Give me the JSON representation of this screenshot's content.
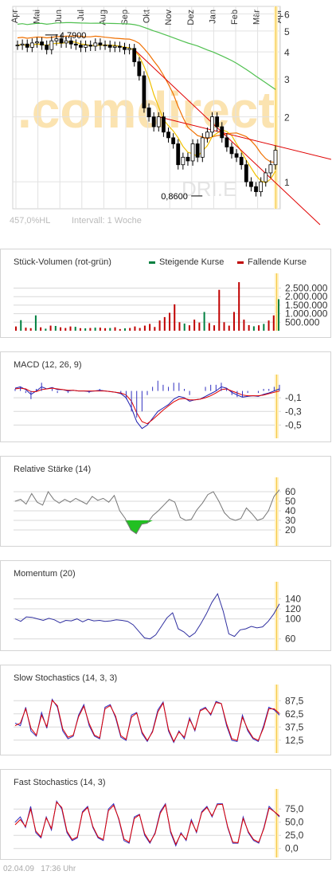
{
  "footer": {
    "date": "02.04.09",
    "time": "17:36 Uhr"
  },
  "main_chart": {
    "watermark": ".comdirect",
    "watermark_code": "DRI.E",
    "perf_label": "457,0%HL",
    "interval_label": "Intervall: 1 Woche",
    "high_label": "4,7900",
    "low_label": "0,8600",
    "colors": {
      "candle": "#000000",
      "ma_short": "#f0c000",
      "ma_mid": "#f07000",
      "ma_long": "#50c050",
      "trend": "#e00000"
    }
  },
  "volume": {
    "title": "Stück-Volumen (rot-grün)",
    "legend_up": "Steigende Kurse",
    "legend_down": "Fallende Kurse",
    "color_up": "#008040",
    "color_down": "#c00000"
  },
  "macd": {
    "title": "MACD (12, 26, 9)"
  },
  "rsi": {
    "title": "Relative Stärke (14)"
  },
  "momentum": {
    "title": "Momentum (20)"
  },
  "slow_stoch": {
    "title": "Slow Stochastics (14, 3, 3)"
  },
  "fast_stoch": {
    "title": "Fast Stochastics (14, 3)"
  },
  "chart_data": [
    {
      "type": "candlestick",
      "x_labels": [
        "Apr",
        "Mai",
        "Jun",
        "Jul",
        "Aug",
        "Sep",
        "Okt",
        "Nov",
        "Dez",
        "Jan",
        "Feb",
        "Mär",
        "Apr"
      ],
      "y_ticks": [
        1,
        2,
        3,
        4,
        5,
        6
      ],
      "y_scale": "log",
      "annotations": [
        {
          "label": "4,7900",
          "value": 4.79
        },
        {
          "label": "0,8600",
          "value": 0.86
        }
      ],
      "close": [
        4.3,
        4.35,
        4.2,
        4.4,
        4.45,
        4.3,
        4.1,
        4.5,
        4.6,
        4.4,
        4.5,
        4.35,
        4.3,
        4.2,
        4.3,
        4.25,
        4.4,
        4.3,
        4.3,
        4.2,
        4.25,
        4.2,
        4.1,
        4.15,
        3.6,
        3.1,
        2.2,
        2.0,
        1.8,
        2.0,
        1.7,
        1.6,
        1.5,
        1.2,
        1.3,
        1.25,
        1.5,
        1.3,
        1.6,
        1.7,
        2.0,
        1.8,
        1.6,
        1.45,
        1.35,
        1.3,
        1.2,
        1.0,
        0.95,
        0.9,
        1.0,
        1.1,
        1.2,
        1.4
      ]
    },
    {
      "type": "bar",
      "title": "Stück-Volumen (rot-grün)",
      "y_ticks": [
        500000,
        1000000,
        1500000,
        2000000,
        2500000
      ],
      "y_tick_labels": [
        "500.000",
        "1.000.000",
        "1.500.000",
        "2.000.000",
        "2.500.000"
      ],
      "values": [
        250000,
        620000,
        180000,
        150000,
        900000,
        200000,
        120000,
        300000,
        280000,
        200000,
        160000,
        250000,
        230000,
        150000,
        140000,
        160000,
        180000,
        180000,
        150000,
        160000,
        200000,
        100000,
        140000,
        160000,
        250000,
        160000,
        300000,
        400000,
        220000,
        600000,
        800000,
        1050000,
        1550000,
        500000,
        420000,
        320000,
        650000,
        480000,
        1100000,
        450000,
        320000,
        2400000,
        500000,
        300000,
        1100000,
        2850000,
        650000,
        330000,
        260000,
        320000,
        400000,
        600000,
        900000,
        1850000
      ],
      "up": [
        false,
        true,
        false,
        false,
        true,
        false,
        true,
        false,
        true,
        false,
        false,
        false,
        true,
        false,
        true,
        false,
        true,
        false,
        false,
        true,
        false,
        false,
        true,
        false,
        false,
        false,
        false,
        false,
        false,
        false,
        false,
        false,
        false,
        false,
        true,
        false,
        false,
        false,
        true,
        false,
        false,
        false,
        false,
        false,
        false,
        false,
        false,
        false,
        true,
        false,
        true,
        false,
        false,
        true
      ]
    },
    {
      "type": "line",
      "title": "MACD (12, 26, 9)",
      "y_ticks": [
        -0.1,
        -0.3,
        -0.5
      ],
      "y_tick_labels": [
        "-0,1",
        "-0,3",
        "-0,5"
      ],
      "series": [
        {
          "values": [
            0.04,
            0.06,
            0.02,
            -0.05,
            0.0,
            0.06,
            0.03,
            0.05,
            0.02,
            0.02,
            0.0,
            0.01,
            0.0,
            0.0,
            -0.01,
            0.0,
            0.01,
            0.0,
            -0.01,
            -0.02,
            -0.04,
            -0.1,
            -0.25,
            -0.45,
            -0.55,
            -0.5,
            -0.4,
            -0.3,
            -0.25,
            -0.2,
            -0.12,
            -0.08,
            -0.1,
            -0.15,
            -0.13,
            -0.12,
            -0.08,
            -0.04,
            0.0,
            0.06,
            0.04,
            -0.02,
            -0.06,
            -0.09,
            -0.08,
            -0.07,
            -0.08,
            -0.05,
            -0.03,
            0.0,
            0.03
          ]
        },
        {
          "values": [
            0.03,
            0.04,
            0.03,
            -0.01,
            -0.01,
            0.02,
            0.03,
            0.04,
            0.03,
            0.02,
            0.01,
            0.01,
            0.0,
            0.0,
            0.0,
            0.0,
            0.0,
            0.0,
            -0.01,
            -0.02,
            -0.03,
            -0.06,
            -0.15,
            -0.32,
            -0.45,
            -0.48,
            -0.42,
            -0.35,
            -0.28,
            -0.22,
            -0.16,
            -0.12,
            -0.11,
            -0.13,
            -0.13,
            -0.12,
            -0.1,
            -0.07,
            -0.03,
            0.02,
            0.03,
            0.0,
            -0.03,
            -0.06,
            -0.07,
            -0.07,
            -0.07,
            -0.06,
            -0.04,
            -0.02,
            0.0
          ]
        }
      ]
    },
    {
      "type": "line",
      "title": "Relative Stärke (14)",
      "y_ticks": [
        20,
        30,
        40,
        50,
        60
      ],
      "values": [
        50,
        52,
        47,
        58,
        49,
        46,
        60,
        52,
        48,
        52,
        49,
        53,
        50,
        47,
        55,
        51,
        53,
        49,
        56,
        40,
        32,
        20,
        16,
        26,
        27,
        35,
        40,
        46,
        52,
        49,
        33,
        30,
        31,
        41,
        48,
        57,
        60,
        50,
        38,
        32,
        30,
        32,
        43,
        37,
        30,
        32,
        40,
        55,
        62
      ]
    },
    {
      "type": "line",
      "title": "Momentum (20)",
      "y_ticks": [
        60,
        100,
        120,
        140
      ],
      "values": [
        100,
        95,
        104,
        103,
        100,
        97,
        101,
        98,
        92,
        97,
        96,
        100,
        94,
        99,
        96,
        97,
        95,
        96,
        98,
        97,
        95,
        88,
        75,
        62,
        60,
        68,
        85,
        102,
        112,
        80,
        74,
        64,
        72,
        90,
        110,
        133,
        150,
        115,
        70,
        65,
        78,
        80,
        85,
        82,
        84,
        95,
        110,
        130
      ]
    },
    {
      "type": "line",
      "title": "Slow Stochastics (14, 3, 3)",
      "y_ticks": [
        12.5,
        37.5,
        62.5,
        87.5
      ],
      "y_tick_labels": [
        "12,5",
        "37,5",
        "62,5",
        "87,5"
      ],
      "series": [
        {
          "values": [
            45,
            40,
            75,
            30,
            20,
            65,
            35,
            90,
            75,
            30,
            15,
            20,
            60,
            80,
            40,
            20,
            15,
            75,
            80,
            55,
            18,
            12,
            60,
            65,
            25,
            10,
            30,
            70,
            85,
            30,
            8,
            30,
            15,
            55,
            30,
            70,
            75,
            60,
            86,
            82,
            40,
            12,
            10,
            60,
            30,
            15,
            10,
            40,
            75,
            70,
            60
          ]
        },
        {
          "values": [
            40,
            45,
            72,
            35,
            22,
            60,
            38,
            88,
            78,
            34,
            18,
            22,
            57,
            77,
            44,
            22,
            17,
            72,
            78,
            58,
            21,
            14,
            56,
            64,
            28,
            12,
            28,
            66,
            83,
            33,
            10,
            28,
            18,
            52,
            32,
            68,
            73,
            62,
            84,
            82,
            44,
            15,
            12,
            56,
            33,
            17,
            12,
            36,
            72,
            72,
            63
          ]
        }
      ]
    },
    {
      "type": "line",
      "title": "Fast Stochastics (14, 3)",
      "y_ticks": [
        0,
        25,
        50,
        75
      ],
      "y_tick_labels": [
        "0,0",
        "25,0",
        "50,0",
        "75,0"
      ],
      "series": [
        {
          "values": [
            50,
            60,
            40,
            80,
            30,
            20,
            60,
            35,
            90,
            75,
            30,
            15,
            20,
            70,
            80,
            40,
            20,
            15,
            75,
            85,
            55,
            15,
            10,
            60,
            65,
            25,
            10,
            30,
            70,
            85,
            30,
            5,
            30,
            15,
            55,
            30,
            70,
            80,
            60,
            85,
            85,
            40,
            10,
            10,
            60,
            30,
            15,
            10,
            40,
            80,
            70,
            60
          ]
        },
        {
          "values": [
            45,
            55,
            42,
            75,
            33,
            22,
            58,
            38,
            88,
            78,
            33,
            17,
            22,
            68,
            78,
            42,
            22,
            17,
            72,
            82,
            57,
            18,
            12,
            57,
            64,
            28,
            12,
            28,
            67,
            83,
            33,
            8,
            28,
            17,
            52,
            32,
            68,
            78,
            62,
            83,
            84,
            42,
            12,
            11,
            57,
            32,
            17,
            12,
            38,
            77,
            70,
            62
          ]
        }
      ]
    }
  ]
}
